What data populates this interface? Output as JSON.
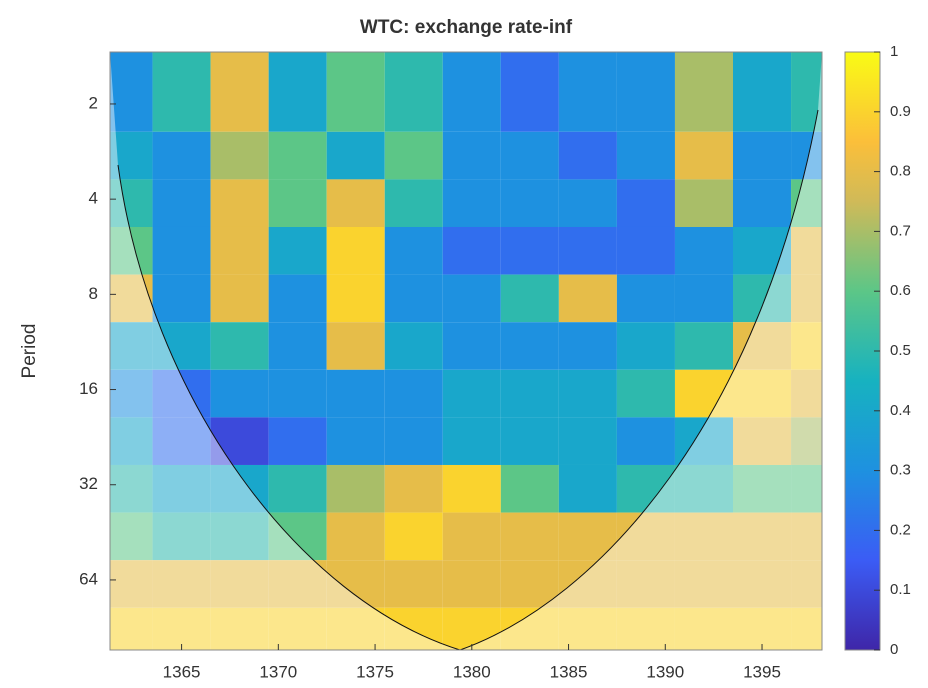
{
  "chart_data": {
    "type": "heatmap",
    "title": "WTC: exchange rate-inf",
    "y_label": "Period",
    "x": [
      1362,
      1365,
      1368,
      1371,
      1374,
      1377,
      1380,
      1383,
      1386,
      1389,
      1392,
      1395,
      1398
    ],
    "y": [
      2,
      3,
      4,
      6,
      8,
      12,
      16,
      24,
      32,
      48,
      64,
      96
    ],
    "z": [
      [
        0.3,
        0.5,
        0.8,
        0.4,
        0.6,
        0.5,
        0.3,
        0.2,
        0.3,
        0.3,
        0.7,
        0.4,
        0.5
      ],
      [
        0.4,
        0.3,
        0.7,
        0.6,
        0.4,
        0.6,
        0.3,
        0.3,
        0.2,
        0.3,
        0.8,
        0.3,
        0.3
      ],
      [
        0.5,
        0.3,
        0.8,
        0.6,
        0.8,
        0.5,
        0.3,
        0.3,
        0.3,
        0.2,
        0.7,
        0.3,
        0.6
      ],
      [
        0.6,
        0.3,
        0.8,
        0.4,
        0.9,
        0.3,
        0.2,
        0.2,
        0.2,
        0.2,
        0.3,
        0.4,
        0.8
      ],
      [
        0.8,
        0.3,
        0.8,
        0.3,
        0.9,
        0.3,
        0.3,
        0.5,
        0.8,
        0.3,
        0.3,
        0.5,
        0.8
      ],
      [
        0.4,
        0.4,
        0.5,
        0.3,
        0.8,
        0.4,
        0.3,
        0.3,
        0.3,
        0.4,
        0.5,
        0.8,
        0.9
      ],
      [
        0.3,
        0.2,
        0.3,
        0.3,
        0.3,
        0.3,
        0.4,
        0.4,
        0.4,
        0.5,
        0.9,
        0.9,
        0.8
      ],
      [
        0.4,
        0.2,
        0.1,
        0.2,
        0.3,
        0.3,
        0.4,
        0.4,
        0.4,
        0.3,
        0.4,
        0.8,
        0.7
      ],
      [
        0.5,
        0.4,
        0.4,
        0.5,
        0.7,
        0.8,
        0.9,
        0.6,
        0.4,
        0.5,
        0.5,
        0.6,
        0.6
      ],
      [
        0.6,
        0.5,
        0.5,
        0.6,
        0.8,
        0.9,
        0.8,
        0.8,
        0.8,
        0.8,
        0.8,
        0.8,
        0.8
      ],
      [
        0.8,
        0.8,
        0.8,
        0.8,
        0.8,
        0.8,
        0.8,
        0.8,
        0.8,
        0.8,
        0.8,
        0.8,
        0.8
      ],
      [
        0.9,
        0.9,
        0.9,
        0.9,
        0.9,
        0.9,
        0.9,
        0.9,
        0.9,
        0.9,
        0.9,
        0.9,
        0.9
      ]
    ],
    "xlim": [
      1361.3,
      1398.1
    ],
    "xticks": [
      1365,
      1370,
      1375,
      1380,
      1385,
      1390,
      1395
    ],
    "ylim": [
      1.37,
      106.6
    ],
    "yticks": [
      2,
      4,
      8,
      16,
      32,
      64
    ],
    "y_log_scale": true,
    "y_reversed": true,
    "colorbar_lim": [
      0,
      1
    ],
    "colorbar_ticks": [
      0,
      0.1,
      0.2,
      0.3,
      0.4,
      0.5,
      0.6,
      0.7,
      0.8,
      0.9,
      1
    ]
  }
}
